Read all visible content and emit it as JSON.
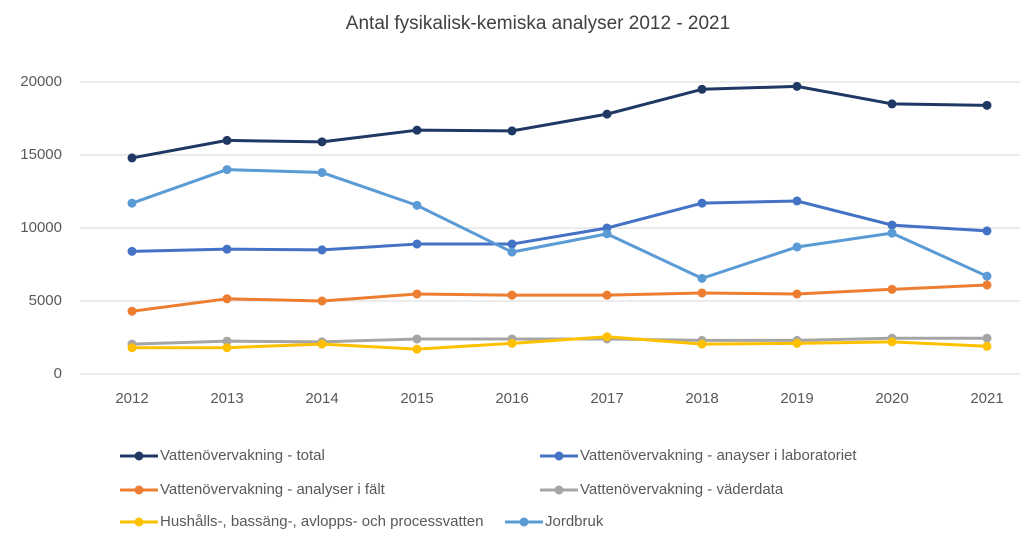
{
  "chart_data": {
    "type": "line",
    "title": "Antal fysikalisk-kemiska analyser 2012 - 2021",
    "categories": [
      "2012",
      "2013",
      "2014",
      "2015",
      "2016",
      "2017",
      "2018",
      "2019",
      "2020",
      "2021"
    ],
    "series": [
      {
        "name": "Vattenövervakning - total",
        "color": "#203864",
        "values": [
          14800,
          16000,
          15900,
          16700,
          16650,
          17800,
          19500,
          19700,
          18500,
          18400
        ]
      },
      {
        "name": "Vattenövervakning - anayser i laboratoriet",
        "color": "#4472c4",
        "values": [
          8400,
          8550,
          8500,
          8900,
          8900,
          10000,
          11700,
          11850,
          10200,
          9800
        ]
      },
      {
        "name": "Vattenövervakning - analyser i fält",
        "color": "#ed7d31",
        "values": [
          4300,
          5150,
          5000,
          5480,
          5400,
          5400,
          5550,
          5480,
          5800,
          6100
        ]
      },
      {
        "name": "Vattenövervakning - väderdata",
        "color": "#a5a5a5",
        "values": [
          2050,
          2250,
          2200,
          2400,
          2400,
          2400,
          2300,
          2300,
          2450,
          2450
        ]
      },
      {
        "name": "Hushålls-, bassäng-, avlopps- och processvatten",
        "color": "#ffc000",
        "values": [
          1800,
          1800,
          2050,
          1700,
          2100,
          2550,
          2050,
          2100,
          2200,
          1900
        ]
      },
      {
        "name": "Jordbruk",
        "color": "#5b9bd5",
        "values": [
          11700,
          14000,
          13800,
          11550,
          8350,
          9600,
          6550,
          8700,
          9650,
          6700
        ]
      }
    ],
    "ylim": [
      0,
      20000
    ],
    "yticks": [
      0,
      5000,
      10000,
      15000,
      20000
    ],
    "grid": true,
    "legend": "bottom"
  }
}
